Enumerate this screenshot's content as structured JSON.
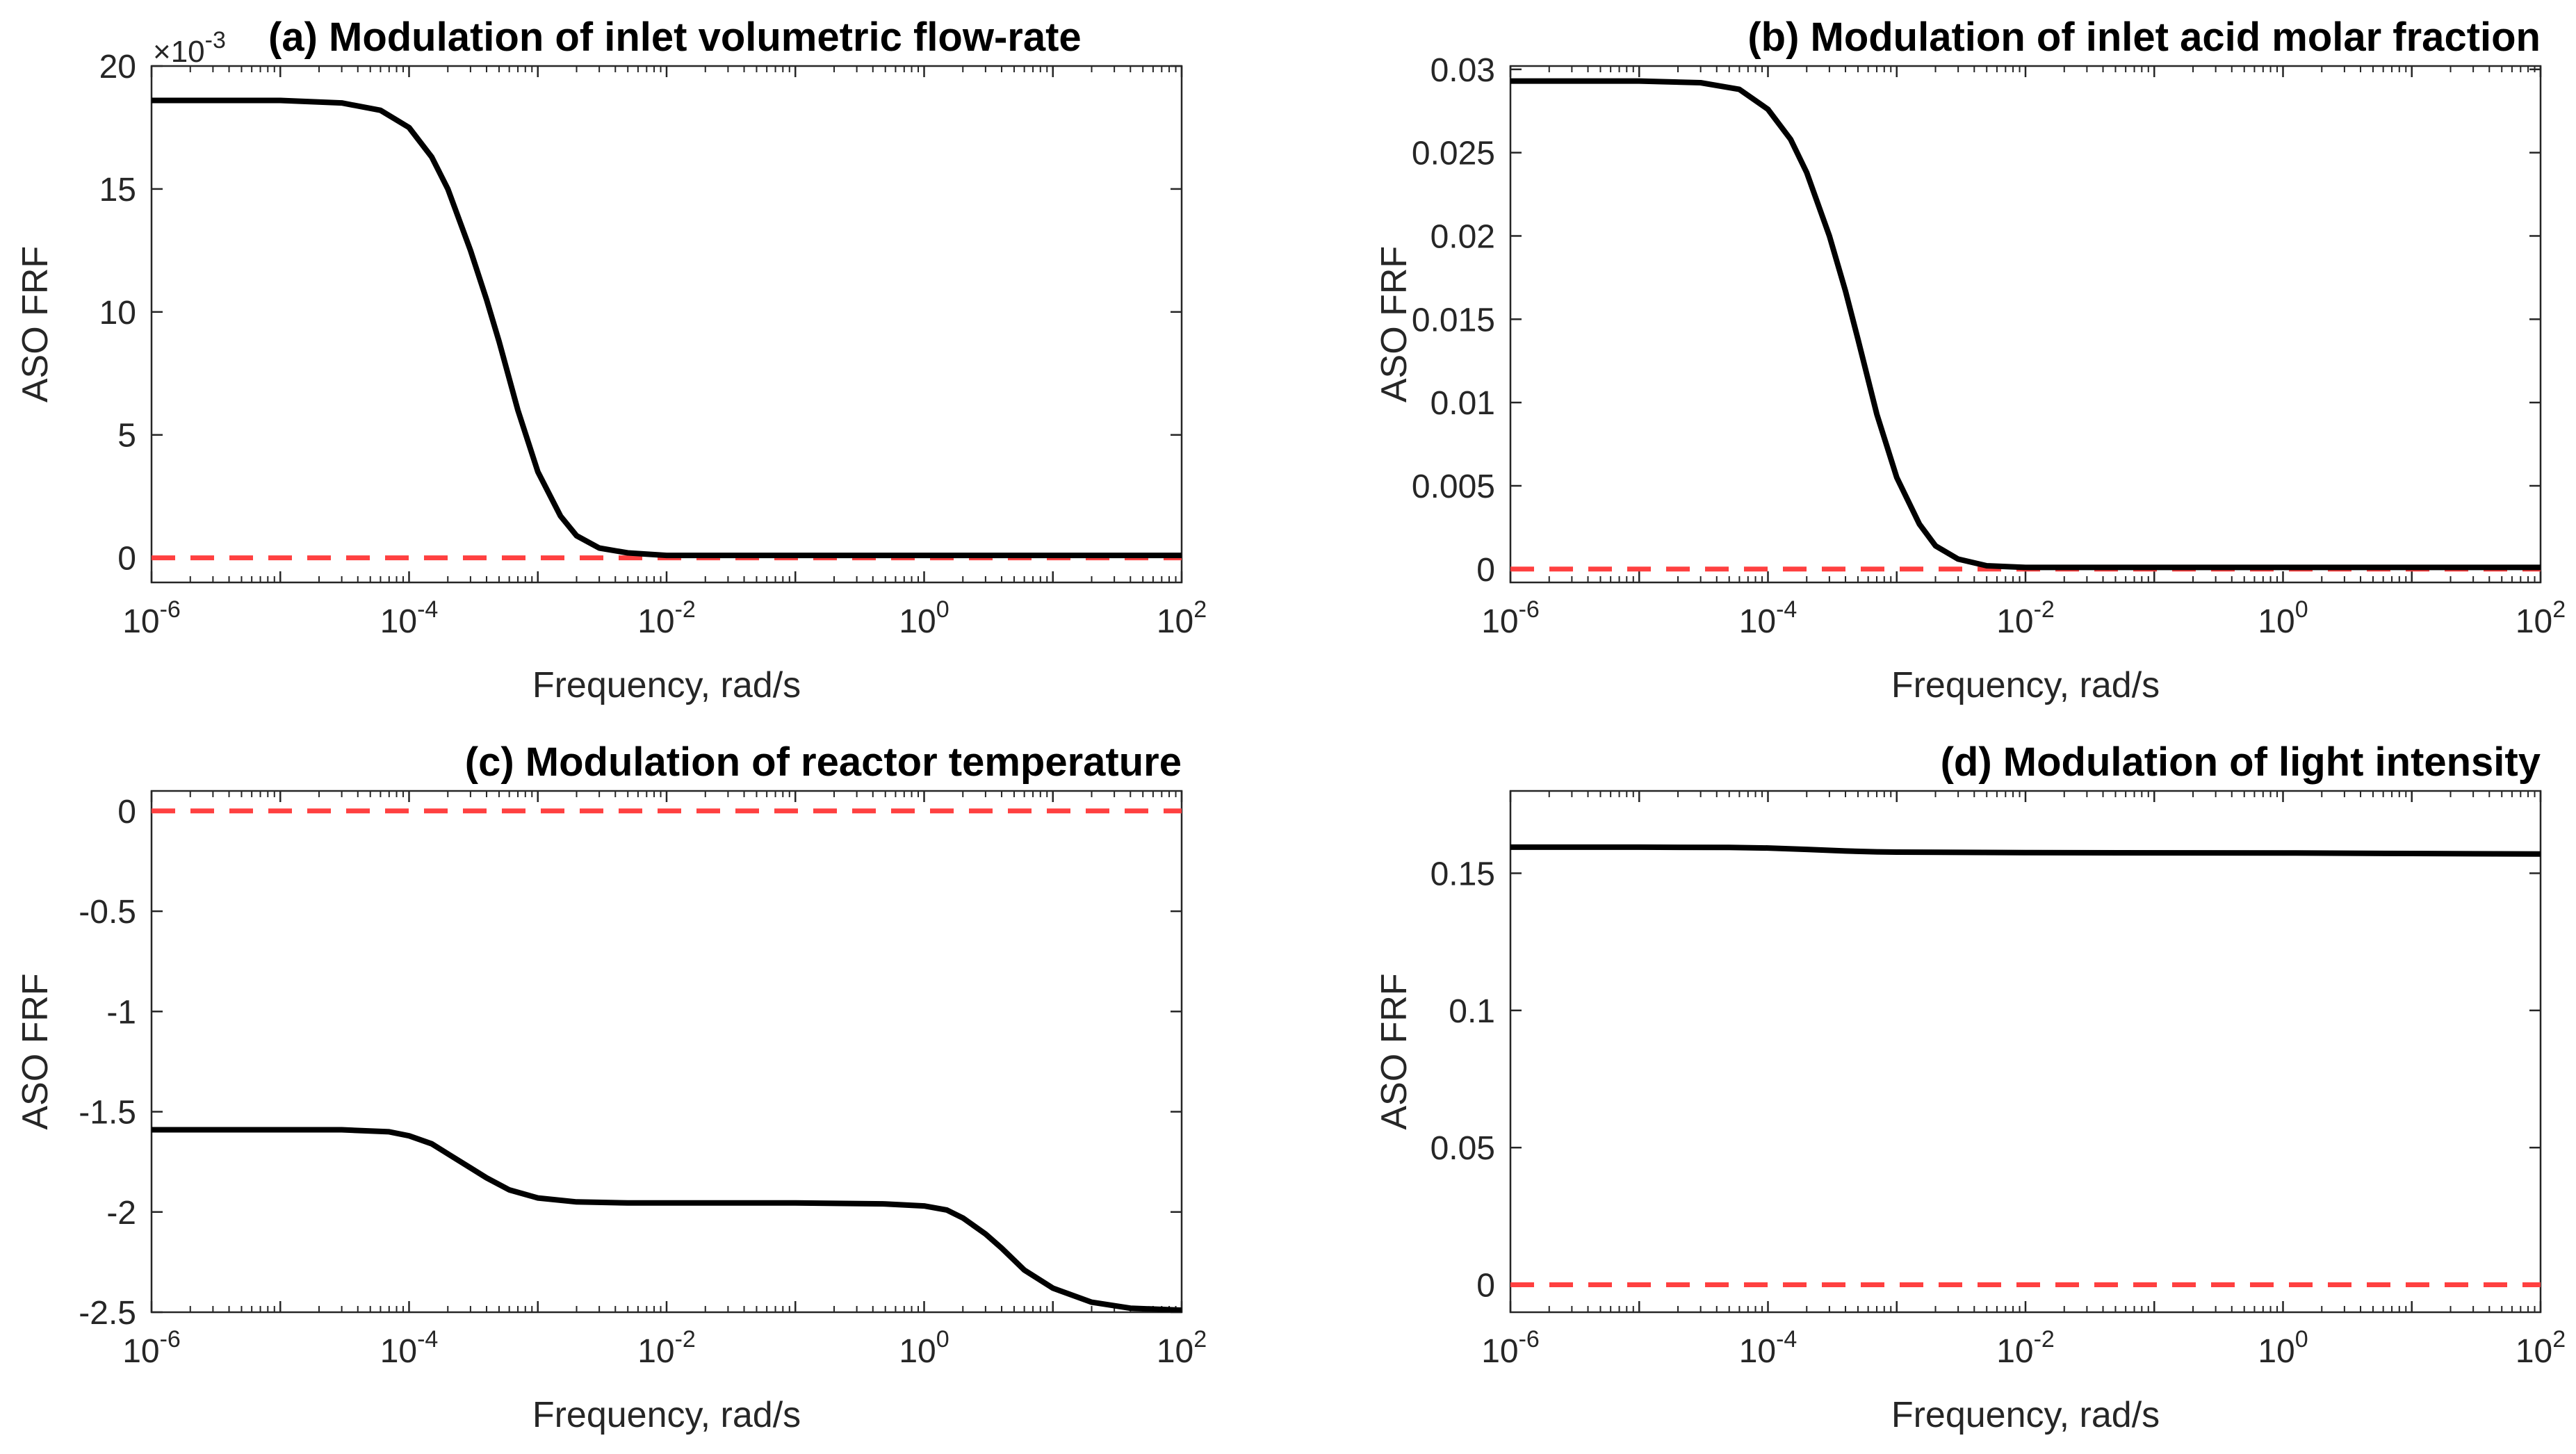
{
  "colors": {
    "frf_line": "#000000",
    "zero_line": "#ff4040",
    "major_grid": "#dcdcdc",
    "minor_grid": "#e6e6e6",
    "axes": "#262626"
  },
  "chart_data": [
    {
      "id": "a",
      "type": "line",
      "title": "(a) Modulation of inlet volumetric flow-rate",
      "title_align": "center",
      "xlabel": "Frequency, rad/s",
      "ylabel": "ASO FRF",
      "xscale": "log",
      "xlim": [
        1e-06,
        100
      ],
      "x_ticks": [
        {
          "base": "10",
          "exp": "-6"
        },
        {
          "base": "10",
          "exp": "-4"
        },
        {
          "base": "10",
          "exp": "-2"
        },
        {
          "base": "10",
          "exp": "0"
        },
        {
          "base": "10",
          "exp": "2"
        }
      ],
      "ylim": [
        -0.001,
        0.02
      ],
      "y_ticks": [
        0,
        0.005,
        0.01,
        0.015,
        0.02
      ],
      "y_tick_labels": [
        "0",
        "5",
        "10",
        "15",
        "20"
      ],
      "y_multiplier": {
        "base": "×10",
        "exp": "-3"
      },
      "series": [
        {
          "name": "ASO FRF",
          "style": "solid",
          "color": "#000000",
          "x": [
            1e-06,
            1e-05,
            3e-05,
            6e-05,
            0.0001,
            0.00015,
            0.0002,
            0.0003,
            0.0004,
            0.0005,
            0.0007,
            0.001,
            0.0015,
            0.002,
            0.003,
            0.005,
            0.01,
            1,
            100
          ],
          "y": [
            0.0186,
            0.0186,
            0.0185,
            0.0182,
            0.0175,
            0.0163,
            0.015,
            0.0125,
            0.0105,
            0.0088,
            0.006,
            0.0035,
            0.0017,
            0.0009,
            0.0004,
            0.0002,
            0.0001,
            0.0001,
            0.0001
          ]
        },
        {
          "name": "zero",
          "style": "dashed",
          "color": "#ff4040",
          "x": [
            1e-06,
            100
          ],
          "y": [
            0,
            0
          ]
        }
      ]
    },
    {
      "id": "b",
      "type": "line",
      "title": "(b) Modulation of inlet acid molar fraction",
      "title_align": "right",
      "xlabel": "Frequency, rad/s",
      "ylabel": "ASO FRF",
      "xscale": "log",
      "xlim": [
        1e-06,
        100
      ],
      "x_ticks": [
        {
          "base": "10",
          "exp": "-6"
        },
        {
          "base": "10",
          "exp": "-4"
        },
        {
          "base": "10",
          "exp": "-2"
        },
        {
          "base": "10",
          "exp": "0"
        },
        {
          "base": "10",
          "exp": "2"
        }
      ],
      "ylim": [
        -0.0008,
        0.0302
      ],
      "y_ticks": [
        0,
        0.005,
        0.01,
        0.015,
        0.02,
        0.025,
        0.03
      ],
      "y_tick_labels": [
        "0",
        "0.005",
        "0.01",
        "0.015",
        "0.02",
        "0.025",
        "0.03"
      ],
      "series": [
        {
          "name": "ASO FRF",
          "style": "solid",
          "color": "#000000",
          "x": [
            1e-06,
            1e-05,
            3e-05,
            6e-05,
            0.0001,
            0.00015,
            0.0002,
            0.0003,
            0.0004,
            0.0005,
            0.0007,
            0.001,
            0.0015,
            0.002,
            0.003,
            0.005,
            0.01,
            1,
            100
          ],
          "y": [
            0.0293,
            0.0293,
            0.0292,
            0.0288,
            0.0276,
            0.0258,
            0.0238,
            0.02,
            0.0167,
            0.0138,
            0.0093,
            0.0055,
            0.0027,
            0.0014,
            0.0006,
            0.0002,
            0.0001,
            0.0001,
            0.0001
          ]
        },
        {
          "name": "zero",
          "style": "dashed",
          "color": "#ff4040",
          "x": [
            1e-06,
            100
          ],
          "y": [
            0,
            0
          ]
        }
      ]
    },
    {
      "id": "c",
      "type": "line",
      "title": "(c) Modulation of reactor temperature",
      "title_align": "right",
      "xlabel": "Frequency, rad/s",
      "ylabel": "ASO FRF",
      "xscale": "log",
      "xlim": [
        1e-06,
        100
      ],
      "x_ticks": [
        {
          "base": "10",
          "exp": "-6"
        },
        {
          "base": "10",
          "exp": "-4"
        },
        {
          "base": "10",
          "exp": "-2"
        },
        {
          "base": "10",
          "exp": "0"
        },
        {
          "base": "10",
          "exp": "2"
        }
      ],
      "ylim": [
        -2.5,
        0.1
      ],
      "y_ticks": [
        -2.5,
        -2,
        -1.5,
        -1,
        -0.5,
        0
      ],
      "y_tick_labels": [
        "-2.5",
        "-2",
        "-1.5",
        "-1",
        "-0.5",
        "0"
      ],
      "series": [
        {
          "name": "ASO FRF",
          "style": "solid",
          "color": "#000000",
          "x": [
            1e-06,
            3e-05,
            7e-05,
            0.0001,
            0.00015,
            0.0002,
            0.0003,
            0.0004,
            0.0006,
            0.001,
            0.002,
            0.005,
            0.01,
            0.1,
            0.5,
            1,
            1.5,
            2,
            3,
            4,
            6,
            10,
            20,
            40,
            100
          ],
          "y": [
            -1.59,
            -1.59,
            -1.6,
            -1.62,
            -1.66,
            -1.71,
            -1.78,
            -1.83,
            -1.89,
            -1.93,
            -1.95,
            -1.955,
            -1.955,
            -1.955,
            -1.96,
            -1.97,
            -1.99,
            -2.03,
            -2.11,
            -2.18,
            -2.29,
            -2.38,
            -2.45,
            -2.48,
            -2.49
          ]
        },
        {
          "name": "zero",
          "style": "dashed",
          "color": "#ff4040",
          "x": [
            1e-06,
            100
          ],
          "y": [
            0,
            0
          ]
        }
      ]
    },
    {
      "id": "d",
      "type": "line",
      "title": "(d) Modulation of light intensity",
      "title_align": "right",
      "xlabel": "Frequency, rad/s",
      "ylabel": "ASO FRF",
      "xscale": "log",
      "xlim": [
        1e-06,
        100
      ],
      "x_ticks": [
        {
          "base": "10",
          "exp": "-6"
        },
        {
          "base": "10",
          "exp": "-4"
        },
        {
          "base": "10",
          "exp": "-2"
        },
        {
          "base": "10",
          "exp": "0"
        },
        {
          "base": "10",
          "exp": "2"
        }
      ],
      "ylim": [
        -0.01,
        0.18
      ],
      "y_ticks": [
        0,
        0.05,
        0.1,
        0.15
      ],
      "y_tick_labels": [
        "0",
        "0.05",
        "0.1",
        "0.15"
      ],
      "series": [
        {
          "name": "ASO FRF",
          "style": "solid",
          "color": "#000000",
          "x": [
            1e-06,
            1e-05,
            5e-05,
            0.0001,
            0.0002,
            0.0004,
            0.0007,
            0.001,
            0.01,
            1,
            10,
            100
          ],
          "y": [
            0.1595,
            0.1595,
            0.1594,
            0.1592,
            0.1587,
            0.1581,
            0.1578,
            0.1577,
            0.1575,
            0.1574,
            0.1572,
            0.157
          ]
        },
        {
          "name": "zero",
          "style": "dashed",
          "color": "#ff4040",
          "x": [
            1e-06,
            100
          ],
          "y": [
            0,
            0
          ]
        }
      ]
    }
  ]
}
